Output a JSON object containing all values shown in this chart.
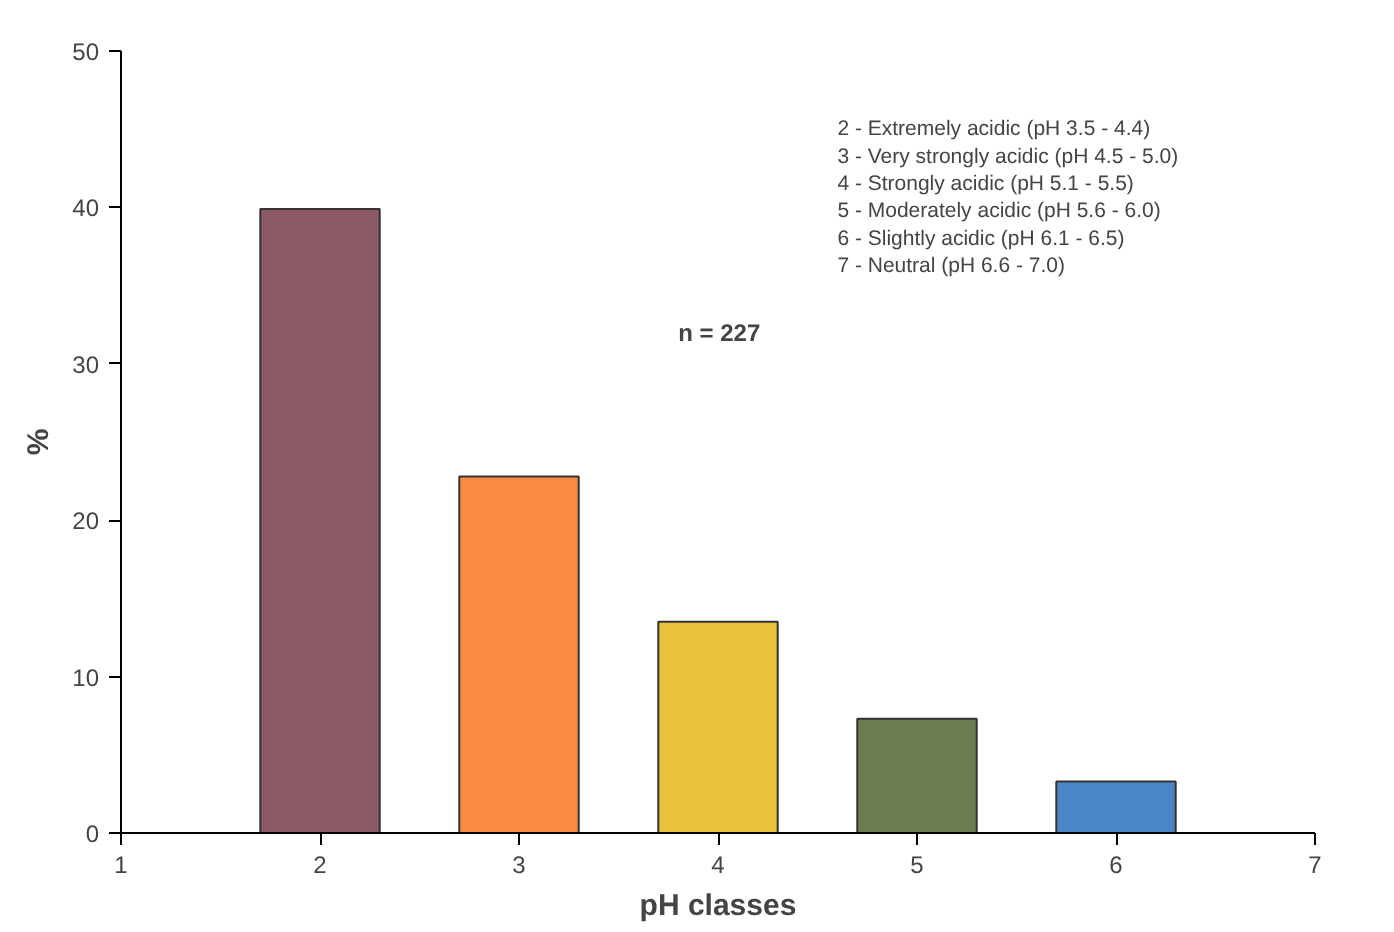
{
  "chart_data": {
    "type": "bar",
    "xlabel": "pH classes",
    "ylabel": "%",
    "x": [
      2,
      3,
      4,
      5,
      6
    ],
    "values": [
      39.9,
      22.8,
      13.5,
      7.3,
      3.3
    ],
    "colors": [
      "#8b5a66",
      "#f98a44",
      "#e8c23a",
      "#6b7d4e",
      "#4a86c5"
    ],
    "xlim": [
      1,
      7
    ],
    "xticks": [
      1,
      2,
      3,
      4,
      5,
      6,
      7
    ],
    "ylim": [
      0,
      50
    ],
    "yticks": [
      0,
      10,
      20,
      30,
      40,
      50
    ],
    "grid": false,
    "annotations": [
      "n = 227",
      "2 - Extremely acidic (pH 3.5 - 4.4)",
      "3 - Very strongly acidic (pH 4.5 - 5.0)",
      "4 - Strongly acidic (pH 5.1 - 5.5)",
      "5 - Moderately acidic (pH 5.6 - 6.0)",
      "6 - Slightly acidic (pH 6.1 - 6.5)",
      "7 - Neutral (pH 6.6 - 7.0)"
    ]
  }
}
